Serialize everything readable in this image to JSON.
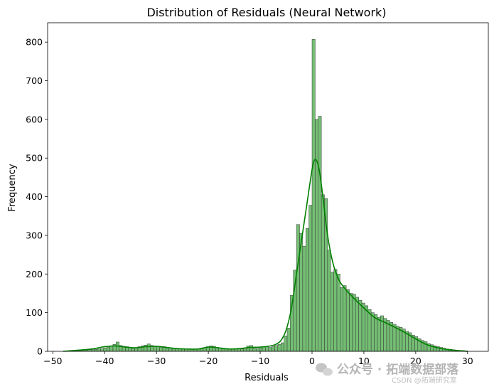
{
  "chart_data": {
    "type": "histogram",
    "title": "Distribution of Residuals (Neural Network)",
    "xlabel": "Residuals",
    "ylabel": "Frequency",
    "xlim": [
      -51,
      34
    ],
    "ylim": [
      0,
      850
    ],
    "xticks": [
      -50,
      -40,
      -30,
      -20,
      -10,
      0,
      10,
      20,
      30
    ],
    "yticks": [
      0,
      100,
      200,
      300,
      400,
      500,
      600,
      700,
      800
    ],
    "bar_color": "#5cb35c",
    "bar_edge_color": "#3a3a3a",
    "kde_color": "#008000",
    "bin_width": 0.6,
    "bins": [
      {
        "x": -47.4,
        "count": 1
      },
      {
        "x": -46.8,
        "count": 1
      },
      {
        "x": -46.2,
        "count": 1
      },
      {
        "x": -45.6,
        "count": 2
      },
      {
        "x": -45.0,
        "count": 2
      },
      {
        "x": -44.4,
        "count": 3
      },
      {
        "x": -43.8,
        "count": 3
      },
      {
        "x": -43.2,
        "count": 4
      },
      {
        "x": -42.6,
        "count": 4
      },
      {
        "x": -42.0,
        "count": 5
      },
      {
        "x": -41.4,
        "count": 6
      },
      {
        "x": -40.8,
        "count": 7
      },
      {
        "x": -40.2,
        "count": 9
      },
      {
        "x": -39.6,
        "count": 11
      },
      {
        "x": -39.0,
        "count": 14
      },
      {
        "x": -38.4,
        "count": 18
      },
      {
        "x": -37.8,
        "count": 24
      },
      {
        "x": -37.2,
        "count": 15
      },
      {
        "x": -36.6,
        "count": 13
      },
      {
        "x": -36.0,
        "count": 12
      },
      {
        "x": -35.4,
        "count": 10
      },
      {
        "x": -34.8,
        "count": 8
      },
      {
        "x": -34.2,
        "count": 10
      },
      {
        "x": -33.6,
        "count": 12
      },
      {
        "x": -33.0,
        "count": 14
      },
      {
        "x": -32.4,
        "count": 16
      },
      {
        "x": -31.8,
        "count": 19
      },
      {
        "x": -31.2,
        "count": 15
      },
      {
        "x": -30.6,
        "count": 12
      },
      {
        "x": -30.0,
        "count": 13
      },
      {
        "x": -29.4,
        "count": 10
      },
      {
        "x": -28.8,
        "count": 12
      },
      {
        "x": -28.2,
        "count": 9
      },
      {
        "x": -27.6,
        "count": 8
      },
      {
        "x": -27.0,
        "count": 7
      },
      {
        "x": -26.4,
        "count": 8
      },
      {
        "x": -25.8,
        "count": 7
      },
      {
        "x": -25.2,
        "count": 6
      },
      {
        "x": -24.6,
        "count": 6
      },
      {
        "x": -24.0,
        "count": 7
      },
      {
        "x": -23.4,
        "count": 6
      },
      {
        "x": -22.8,
        "count": 5
      },
      {
        "x": -22.2,
        "count": 6
      },
      {
        "x": -21.6,
        "count": 8
      },
      {
        "x": -21.0,
        "count": 9
      },
      {
        "x": -20.4,
        "count": 12
      },
      {
        "x": -19.8,
        "count": 14
      },
      {
        "x": -19.2,
        "count": 13
      },
      {
        "x": -18.6,
        "count": 10
      },
      {
        "x": -18.0,
        "count": 8
      },
      {
        "x": -17.4,
        "count": 7
      },
      {
        "x": -16.8,
        "count": 6
      },
      {
        "x": -16.2,
        "count": 7
      },
      {
        "x": -15.6,
        "count": 6
      },
      {
        "x": -15.0,
        "count": 7
      },
      {
        "x": -14.4,
        "count": 8
      },
      {
        "x": -13.8,
        "count": 6
      },
      {
        "x": -13.2,
        "count": 9
      },
      {
        "x": -12.6,
        "count": 14
      },
      {
        "x": -12.0,
        "count": 15
      },
      {
        "x": -11.4,
        "count": 8
      },
      {
        "x": -10.8,
        "count": 7
      },
      {
        "x": -10.2,
        "count": 9
      },
      {
        "x": -9.6,
        "count": 11
      },
      {
        "x": -9.0,
        "count": 12
      },
      {
        "x": -8.4,
        "count": 10
      },
      {
        "x": -7.8,
        "count": 12
      },
      {
        "x": -7.2,
        "count": 15
      },
      {
        "x": -6.6,
        "count": 18
      },
      {
        "x": -6.0,
        "count": 22
      },
      {
        "x": -5.4,
        "count": 40
      },
      {
        "x": -4.8,
        "count": 60
      },
      {
        "x": -4.2,
        "count": 145
      },
      {
        "x": -3.6,
        "count": 210
      },
      {
        "x": -3.0,
        "count": 328
      },
      {
        "x": -2.4,
        "count": 305
      },
      {
        "x": -1.8,
        "count": 272
      },
      {
        "x": -1.2,
        "count": 318
      },
      {
        "x": -0.6,
        "count": 378
      },
      {
        "x": 0.0,
        "count": 807
      },
      {
        "x": 0.6,
        "count": 600
      },
      {
        "x": 1.2,
        "count": 608
      },
      {
        "x": 1.8,
        "count": 405
      },
      {
        "x": 2.4,
        "count": 395
      },
      {
        "x": 3.0,
        "count": 262
      },
      {
        "x": 3.6,
        "count": 205
      },
      {
        "x": 4.2,
        "count": 212
      },
      {
        "x": 4.8,
        "count": 200
      },
      {
        "x": 5.4,
        "count": 165
      },
      {
        "x": 6.0,
        "count": 170
      },
      {
        "x": 6.6,
        "count": 160
      },
      {
        "x": 7.2,
        "count": 150
      },
      {
        "x": 7.8,
        "count": 148
      },
      {
        "x": 8.4,
        "count": 140
      },
      {
        "x": 9.0,
        "count": 132
      },
      {
        "x": 9.6,
        "count": 125
      },
      {
        "x": 10.2,
        "count": 118
      },
      {
        "x": 10.8,
        "count": 108
      },
      {
        "x": 11.4,
        "count": 100
      },
      {
        "x": 12.0,
        "count": 95
      },
      {
        "x": 12.6,
        "count": 88
      },
      {
        "x": 13.2,
        "count": 92
      },
      {
        "x": 13.8,
        "count": 85
      },
      {
        "x": 14.4,
        "count": 80
      },
      {
        "x": 15.0,
        "count": 75
      },
      {
        "x": 15.6,
        "count": 70
      },
      {
        "x": 16.2,
        "count": 65
      },
      {
        "x": 16.8,
        "count": 62
      },
      {
        "x": 17.4,
        "count": 58
      },
      {
        "x": 18.0,
        "count": 52
      },
      {
        "x": 18.6,
        "count": 48
      },
      {
        "x": 19.2,
        "count": 42
      },
      {
        "x": 19.8,
        "count": 38
      },
      {
        "x": 20.4,
        "count": 33
      },
      {
        "x": 21.0,
        "count": 28
      },
      {
        "x": 21.6,
        "count": 25
      },
      {
        "x": 22.2,
        "count": 20
      },
      {
        "x": 22.8,
        "count": 17
      },
      {
        "x": 23.4,
        "count": 14
      },
      {
        "x": 24.0,
        "count": 12
      },
      {
        "x": 24.6,
        "count": 10
      },
      {
        "x": 25.2,
        "count": 8
      },
      {
        "x": 25.8,
        "count": 6
      },
      {
        "x": 26.4,
        "count": 5
      },
      {
        "x": 27.0,
        "count": 4
      },
      {
        "x": 27.6,
        "count": 3
      },
      {
        "x": 28.2,
        "count": 2
      },
      {
        "x": 28.8,
        "count": 2
      },
      {
        "x": 29.4,
        "count": 1
      }
    ],
    "kde": {
      "x": [
        -48,
        -46,
        -44,
        -42,
        -40,
        -38,
        -36,
        -34,
        -32,
        -30,
        -28,
        -26,
        -24,
        -22,
        -20,
        -18,
        -16,
        -14,
        -12,
        -10,
        -8,
        -7,
        -6,
        -5,
        -4,
        -3,
        -2,
        -1,
        0,
        0.5,
        1,
        1.5,
        2,
        3,
        4,
        5,
        6,
        8,
        10,
        12,
        14,
        16,
        18,
        20,
        22,
        24,
        26,
        28,
        30
      ],
      "y": [
        0,
        2,
        4,
        7,
        12,
        14,
        11,
        9,
        12,
        13,
        10,
        7,
        6,
        6,
        11,
        9,
        6,
        7,
        10,
        11,
        14,
        18,
        28,
        55,
        110,
        200,
        290,
        380,
        470,
        495,
        490,
        460,
        410,
        300,
        230,
        190,
        168,
        138,
        112,
        88,
        75,
        62,
        48,
        32,
        18,
        10,
        5,
        2,
        0
      ]
    }
  },
  "watermark": {
    "text": "公众号 · 拓端数据部落",
    "subtext": "CSDN @拓端研究室"
  }
}
